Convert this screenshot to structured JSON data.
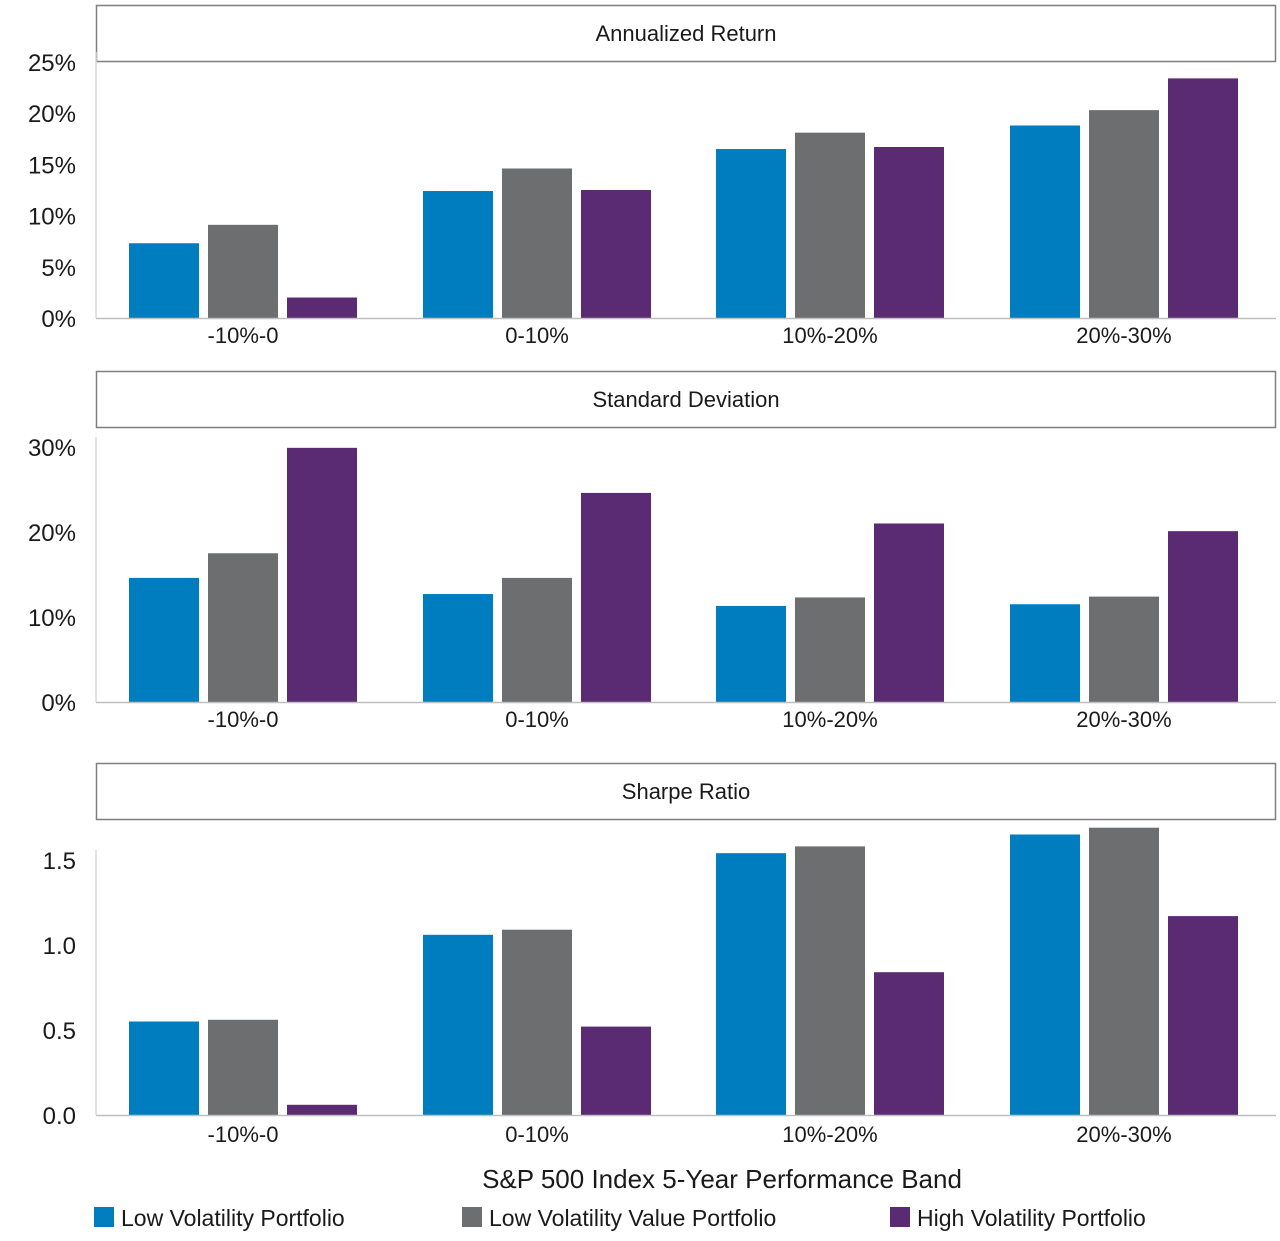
{
  "chart_data": {
    "type": "bar",
    "xlabel": "S&P 500 Index 5-Year Performance Band",
    "categories": [
      "-10%-0",
      "0-10%",
      "10%-20%",
      "20%-30%"
    ],
    "legend": {
      "placement": "bottom",
      "entries": [
        {
          "name": "Low Volatility Portfolio",
          "color": "#007DBF"
        },
        {
          "name": "Low Volatility Value Portfolio",
          "color": "#6D6E70"
        },
        {
          "name": "High Volatility Portfolio",
          "color": "#5A2A73"
        }
      ]
    },
    "panels": [
      {
        "title": "Annualized Return",
        "ylim": [
          0,
          25
        ],
        "yticks": [
          0,
          5,
          10,
          15,
          20,
          25
        ],
        "ytick_labels": [
          "0%",
          "5%",
          "10%",
          "15%",
          "20%",
          "25%"
        ],
        "series": [
          {
            "name": "Low Volatility Portfolio",
            "values": [
              7.3,
              12.4,
              16.5,
              18.8
            ]
          },
          {
            "name": "Low Volatility Value Portfolio",
            "values": [
              9.1,
              14.6,
              18.1,
              20.3
            ]
          },
          {
            "name": "High Volatility Portfolio",
            "values": [
              2.0,
              12.5,
              16.7,
              23.4
            ]
          }
        ]
      },
      {
        "title": "Standard Deviation",
        "ylim": [
          0,
          30
        ],
        "yticks": [
          0,
          10,
          20,
          30
        ],
        "ytick_labels": [
          "0%",
          "10%",
          "20%",
          "30%"
        ],
        "series": [
          {
            "name": "Low Volatility Portfolio",
            "values": [
              14.6,
              12.7,
              11.3,
              11.5
            ]
          },
          {
            "name": "Low Volatility Value Portfolio",
            "values": [
              17.5,
              14.6,
              12.3,
              12.4
            ]
          },
          {
            "name": "High Volatility Portfolio",
            "values": [
              29.9,
              24.6,
              21.0,
              20.1
            ]
          }
        ]
      },
      {
        "title": "Sharpe Ratio",
        "ylim": [
          0,
          1.5
        ],
        "yticks": [
          0,
          0.5,
          1.0,
          1.5
        ],
        "ytick_labels": [
          "0.0",
          "0.5",
          "1.0",
          "1.5"
        ],
        "series": [
          {
            "name": "Low Volatility Portfolio",
            "values": [
              0.55,
              1.06,
              1.54,
              1.65
            ]
          },
          {
            "name": "Low Volatility Value Portfolio",
            "values": [
              0.56,
              1.09,
              1.58,
              1.69
            ]
          },
          {
            "name": "High Volatility Portfolio",
            "values": [
              0.06,
              0.52,
              0.84,
              1.17
            ]
          }
        ]
      }
    ]
  }
}
